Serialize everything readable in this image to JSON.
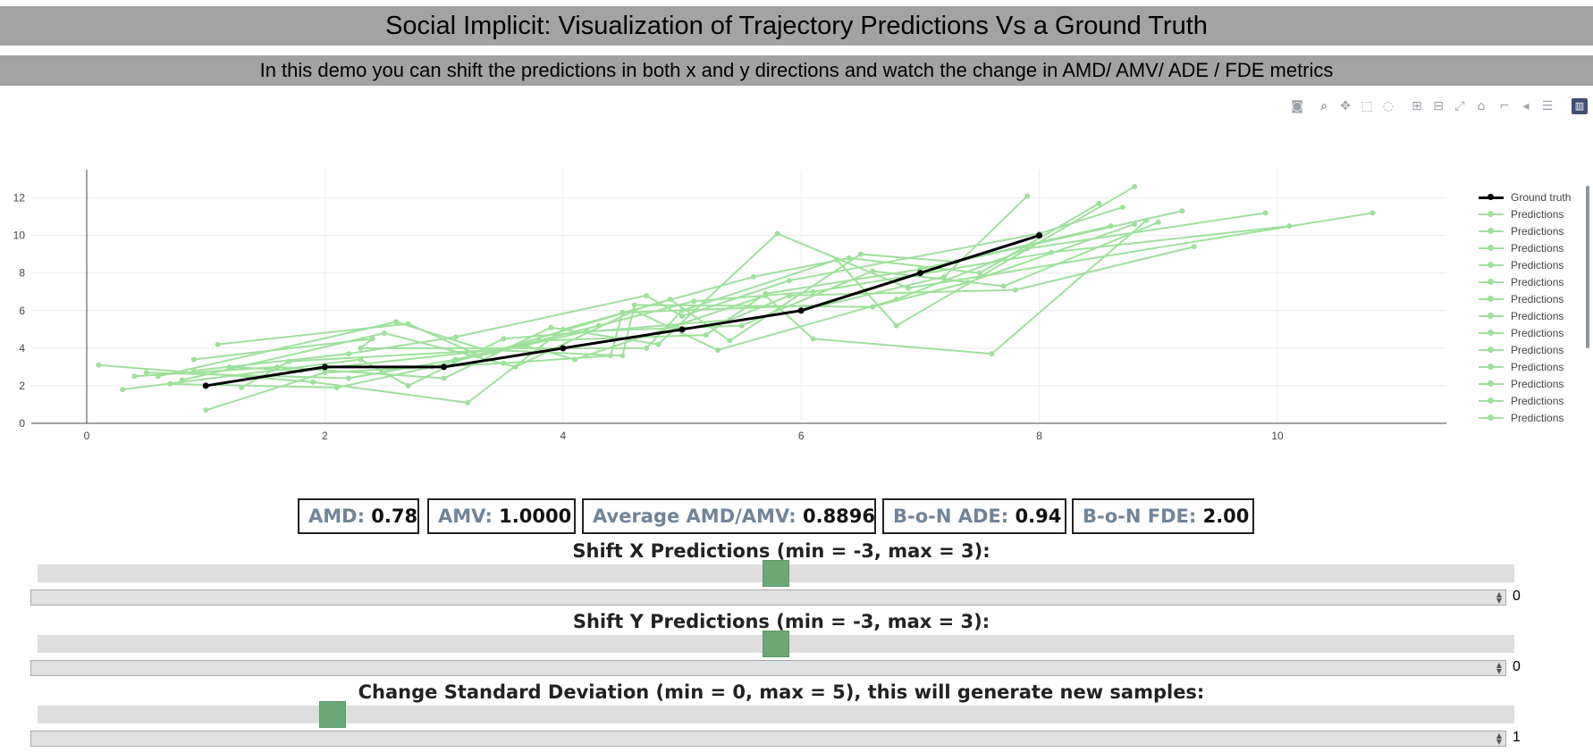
{
  "header": {
    "title": "Social Implicit: Visualization of Trajectory Predictions Vs a Ground Truth",
    "subtitle": "In this demo you can shift the predictions in both x and y directions and watch the change in AMD/ AMV/ ADE / FDE metrics"
  },
  "modebar": [
    "camera-icon",
    "zoom-icon",
    "pan-icon",
    "box-select-icon",
    "lasso-icon",
    "zoom-in-icon",
    "zoom-out-icon",
    "autoscale-icon",
    "reset-axes-icon",
    "spike-lines-icon",
    "hover-closest-icon",
    "hover-compare-icon",
    "plotly-logo-icon"
  ],
  "chart_data": {
    "type": "line",
    "xlim": [
      -0.5,
      11.4
    ],
    "ylim": [
      0,
      13.5
    ],
    "x_ticks": [
      0,
      2,
      4,
      6,
      8,
      10
    ],
    "y_ticks": [
      0,
      2,
      4,
      6,
      8,
      10,
      12
    ],
    "grid": true,
    "legend_position": "right",
    "colors": {
      "ground_truth": "#000000",
      "predictions": "#9ee09b"
    },
    "ground_truth": {
      "name": "Ground truth",
      "x": [
        1,
        2,
        3,
        4,
        5,
        6,
        7,
        8
      ],
      "y": [
        2,
        3,
        3,
        4,
        5,
        6,
        8,
        10
      ]
    },
    "predictions": [
      {
        "name": "Predictions",
        "x": [
          0.5,
          2.2,
          3.1,
          3.8,
          5.2,
          5.7,
          7.0,
          8.6
        ],
        "y": [
          2.7,
          2.4,
          3.4,
          4.4,
          4.7,
          6.9,
          8.2,
          10.5
        ]
      },
      {
        "name": "Predictions",
        "x": [
          1.3,
          1.7,
          3.4,
          4.5,
          4.6,
          6.6,
          7.4,
          8.8
        ],
        "y": [
          1.9,
          3.3,
          3.9,
          3.6,
          6.3,
          6.2,
          7.5,
          10.6
        ]
      },
      {
        "name": "Predictions",
        "x": [
          0.3,
          2.3,
          2.7,
          3.5,
          5.4,
          5.9,
          7.8,
          9.3
        ],
        "y": [
          1.8,
          3.4,
          2.0,
          4.5,
          5.5,
          6.8,
          7.1,
          9.4
        ]
      },
      {
        "name": "Predictions",
        "x": [
          1.0,
          2.0,
          3.5,
          4.4,
          4.5,
          6.2,
          7.2,
          7.9
        ],
        "y": [
          0.7,
          2.7,
          3.2,
          3.6,
          5.9,
          6.3,
          7.8,
          12.1
        ]
      },
      {
        "name": "Predictions",
        "x": [
          0.9,
          2.4,
          2.3,
          4.7,
          5.0,
          6.3,
          6.8,
          8.8
        ],
        "y": [
          3.4,
          4.5,
          4.0,
          4.0,
          6.0,
          8.7,
          5.2,
          12.6
        ]
      },
      {
        "name": "Predictions",
        "x": [
          0.4,
          1.6,
          3.0,
          3.9,
          4.8,
          5.8,
          6.9,
          10.8
        ],
        "y": [
          2.5,
          3.0,
          2.4,
          5.1,
          4.2,
          10.1,
          7.2,
          11.2
        ]
      },
      {
        "name": "Predictions",
        "x": [
          1.1,
          2.7,
          3.3,
          4.2,
          5.5,
          6.6,
          7.7,
          9.0
        ],
        "y": [
          4.2,
          5.3,
          3.6,
          4.9,
          5.2,
          8.1,
          7.3,
          10.7
        ]
      },
      {
        "name": "Predictions",
        "x": [
          0.7,
          2.1,
          2.9,
          4.3,
          5.1,
          6.1,
          8.1,
          10.1
        ],
        "y": [
          2.1,
          1.9,
          3.0,
          5.2,
          6.5,
          7.0,
          9.1,
          10.5
        ]
      },
      {
        "name": "Predictions",
        "x": [
          0.1,
          1.9,
          3.2,
          4.0,
          5.6,
          6.4,
          7.5,
          8.5
        ],
        "y": [
          3.1,
          2.2,
          1.1,
          5.0,
          7.8,
          8.8,
          8.0,
          11.7
        ]
      },
      {
        "name": "Predictions",
        "x": [
          0.8,
          2.5,
          3.6,
          4.6,
          5.3,
          6.8,
          7.9,
          9.9
        ],
        "y": [
          2.3,
          4.8,
          3.0,
          6.0,
          3.9,
          6.6,
          9.3,
          11.2
        ]
      },
      {
        "name": "Predictions",
        "x": [
          1.2,
          1.8,
          3.7,
          4.1,
          5.7,
          6.1,
          7.6,
          8.9
        ],
        "y": [
          3.0,
          2.8,
          4.1,
          3.4,
          6.8,
          4.5,
          3.7,
          10.8
        ]
      },
      {
        "name": "Predictions",
        "x": [
          0.6,
          2.6,
          3.4,
          4.9,
          5.4,
          6.5,
          7.3,
          9.2
        ],
        "y": [
          2.5,
          5.4,
          3.8,
          6.6,
          4.4,
          9.0,
          8.6,
          11.3
        ]
      },
      {
        "name": "Predictions",
        "x": [
          0.9,
          2.2,
          3.1,
          4.7,
          5.0,
          5.9,
          8.0,
          8.7
        ],
        "y": [
          2.8,
          3.7,
          4.6,
          6.8,
          5.7,
          7.6,
          10.1,
          11.5
        ]
      }
    ]
  },
  "metrics": {
    "amd": {
      "label": "AMD:",
      "value": "0.78"
    },
    "amv": {
      "label": "AMV:",
      "value": "1.0000"
    },
    "avg": {
      "label": "Average AMD/AMV:",
      "value": "0.8896"
    },
    "ade": {
      "label": "B-o-N ADE:",
      "value": "0.94"
    },
    "fde": {
      "label": "B-o-N FDE:",
      "value": "2.00"
    }
  },
  "sliders": {
    "shift_x": {
      "label": "Shift X Predictions (min = -3, max = 3):",
      "min": -3,
      "max": 3,
      "value": "0",
      "fraction": 0.5
    },
    "shift_y": {
      "label": "Shift Y Predictions (min = -3, max = 3):",
      "min": -3,
      "max": 3,
      "value": "0",
      "fraction": 0.5
    },
    "std": {
      "label": "Change Standard Deviation (min = 0, max = 5), this will generate new samples:",
      "min": 0,
      "max": 5,
      "value": "1",
      "fraction": 0.2
    }
  }
}
